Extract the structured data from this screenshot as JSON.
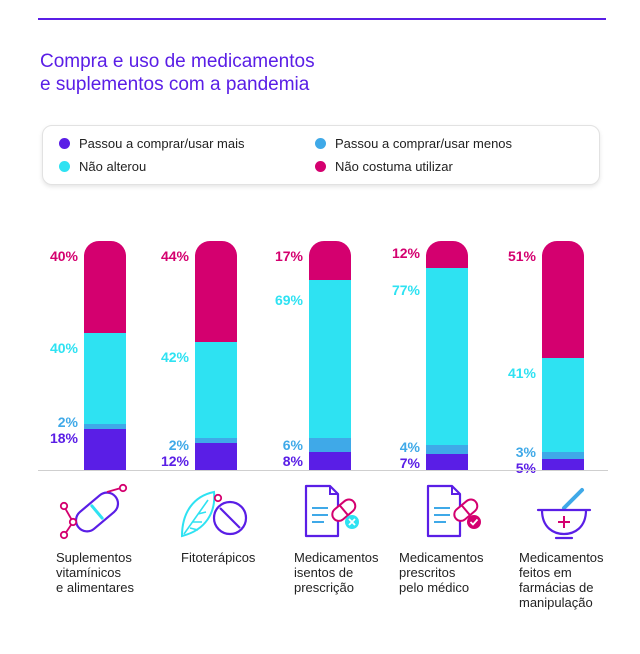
{
  "title_lines": [
    "Compra e uso de medicamentos",
    "e suplementos com a pandemia"
  ],
  "colors": {
    "mais": "#5a1ee6",
    "menos": "#3fa9e8",
    "nao_alterou": "#2ee2f2",
    "nao_costuma": "#d4006f",
    "rule": "#5a1ee6"
  },
  "legend": [
    {
      "key": "mais",
      "label": "Passou a comprar/usar mais"
    },
    {
      "key": "menos",
      "label": "Passou a comprar/usar menos"
    },
    {
      "key": "nao_alterou",
      "label": "Não alterou"
    },
    {
      "key": "nao_costuma",
      "label": "Não costuma utilizar"
    }
  ],
  "chart_data": {
    "type": "bar",
    "stacked": true,
    "title": "Compra e uso de medicamentos e suplementos com a pandemia",
    "categories": [
      "Suplementos vitamínicos e alimentares",
      "Fitoterápicos",
      "Medicamentos isentos de prescrição",
      "Medicamentos prescritos pelo médico",
      "Medicamentos feitos em farmácias de manipulação"
    ],
    "category_lines": [
      [
        "Suplementos",
        "vitamínicos",
        "e alimentares"
      ],
      [
        "Fitoterápicos"
      ],
      [
        "Medicamentos",
        "isentos de",
        "prescrição"
      ],
      [
        "Medicamentos",
        "prescritos",
        "pelo médico"
      ],
      [
        "Medicamentos",
        "feitos em",
        "farmácias de",
        "manipulação"
      ]
    ],
    "category_icons": [
      "supplement-pill-icon",
      "herbal-leaf-pill-icon",
      "otc-prescription-icon",
      "prescribed-medicine-icon",
      "mortar-pestle-icon"
    ],
    "series": [
      {
        "name": "Passou a comprar/usar mais",
        "key": "mais",
        "values": [
          18,
          12,
          8,
          7,
          5
        ],
        "labels": [
          "18%",
          "12%",
          "8%",
          "7%",
          "5%"
        ]
      },
      {
        "name": "Passou a comprar/usar menos",
        "key": "menos",
        "values": [
          2,
          2,
          6,
          4,
          3
        ],
        "labels": [
          "2%",
          "2%",
          "6%",
          "4%",
          "3%"
        ]
      },
      {
        "name": "Não alterou",
        "key": "nao_alterou",
        "values": [
          40,
          42,
          69,
          77,
          41
        ],
        "labels": [
          "40%",
          "42%",
          "69%",
          "77%",
          "41%"
        ]
      },
      {
        "name": "Não costuma utilizar",
        "key": "nao_costuma",
        "values": [
          40,
          44,
          17,
          12,
          51
        ],
        "labels": [
          "40%",
          "44%",
          "17%",
          "12%",
          "51%"
        ]
      }
    ],
    "ylim": [
      0,
      100
    ],
    "legend_position": "top",
    "grid": false
  }
}
